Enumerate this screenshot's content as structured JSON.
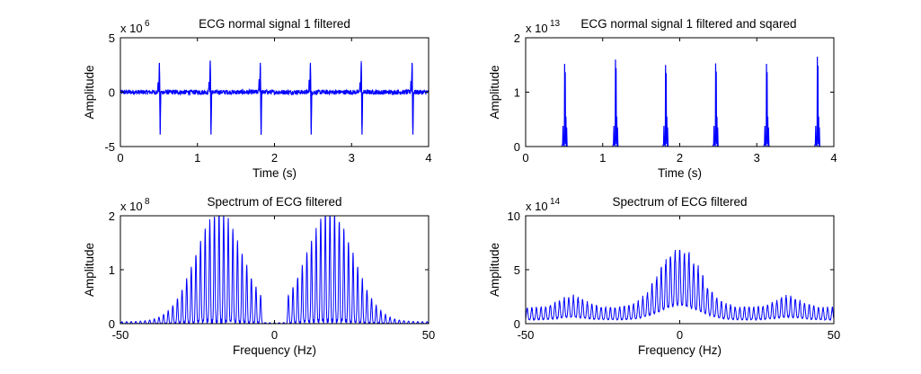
{
  "chart_data": [
    {
      "type": "line",
      "title": "ECG normal signal 1 filtered",
      "xlabel": "Time (s)",
      "ylabel": "Amplitude",
      "xlim": [
        0,
        4
      ],
      "ylim": [
        -5,
        5
      ],
      "y_exponent": "x 10",
      "y_exponent_power": "6",
      "xticks": [
        "0",
        "1",
        "2",
        "3",
        "4"
      ],
      "yticks": [
        "-5",
        "0",
        "5"
      ],
      "line_color": "#0000ff",
      "beat_times": [
        0.51,
        1.17,
        1.82,
        2.47,
        3.13,
        3.79
      ],
      "beat_peak_values": [
        2.7,
        2.9,
        2.7,
        2.7,
        2.7,
        2.7
      ],
      "beat_trough_values": [
        -3.9,
        -3.9,
        -3.9,
        -3.9,
        -3.9,
        -3.9
      ],
      "baseline_value": 0
    },
    {
      "type": "line",
      "title": "ECG normal signal 1 filtered and sqared",
      "xlabel": "Time (s)",
      "ylabel": "Amplitude",
      "xlim": [
        0,
        4
      ],
      "ylim": [
        0,
        2
      ],
      "y_exponent": "x 10",
      "y_exponent_power": "13",
      "xticks": [
        "0",
        "1",
        "2",
        "3",
        "4"
      ],
      "yticks": [
        "0",
        "1",
        "2"
      ],
      "line_color": "#0000ff",
      "beat_times": [
        0.51,
        1.17,
        1.82,
        2.47,
        3.13,
        3.79
      ],
      "beat_peak_values": [
        1.52,
        1.6,
        1.5,
        1.53,
        1.52,
        1.65
      ]
    },
    {
      "type": "line",
      "title": "Spectrum of ECG filtered",
      "xlabel": "Frequency (Hz)",
      "ylabel": "Amplitude",
      "xlim": [
        -50,
        50
      ],
      "ylim": [
        0,
        2
      ],
      "y_exponent": "x 10",
      "y_exponent_power": "8",
      "xticks": [
        "-50",
        "0",
        "50"
      ],
      "yticks": [
        "0",
        "1",
        "2"
      ],
      "line_color": "#0000ff",
      "harmonic_spacing_hz": 1.5,
      "envelope_centers_hz": [
        -18,
        18
      ],
      "envelope_peak_value": 1.95,
      "envelope_width_hz": 8
    },
    {
      "type": "line",
      "title": "Spectrum of ECG filtered",
      "xlabel": "Frequency (Hz)",
      "ylabel": "Amplitude",
      "xlim": [
        -50,
        50
      ],
      "ylim": [
        0,
        10
      ],
      "y_exponent": "x 10",
      "y_exponent_power": "14",
      "xticks": [
        "-50",
        "0",
        "50"
      ],
      "yticks": [
        "0",
        "5",
        "10"
      ],
      "line_color": "#0000ff",
      "harmonic_spacing_hz": 1.5,
      "central_peak_value": 7,
      "side_lobe_centers_hz": [
        -35,
        35
      ],
      "side_lobe_peak_value": 2.7
    }
  ]
}
